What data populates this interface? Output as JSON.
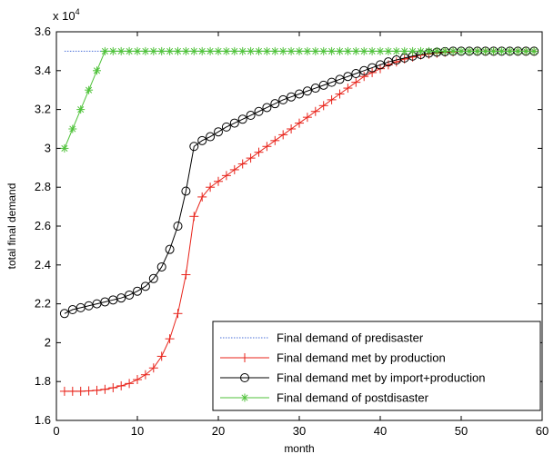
{
  "chart_data": {
    "type": "line",
    "title": "",
    "xlabel": "month",
    "ylabel": "total final demand",
    "exponent_label": {
      "base": "x 10",
      "exp": "4"
    },
    "xlim": [
      0,
      60
    ],
    "ylim": [
      1.6,
      3.6
    ],
    "x_ticks": [
      0,
      10,
      20,
      30,
      40,
      50,
      60
    ],
    "y_ticks": [
      1.6,
      1.8,
      2,
      2.2,
      2.4,
      2.6,
      2.8,
      3,
      3.2,
      3.4,
      3.6
    ],
    "x_tick_labels": [
      "0",
      "10",
      "20",
      "30",
      "40",
      "50",
      "60"
    ],
    "y_tick_labels": [
      "1.6",
      "1.8",
      "2",
      "2.2",
      "2.4",
      "2.6",
      "2.8",
      "3",
      "3.2",
      "3.4",
      "3.6"
    ],
    "grid": false,
    "legend_position": "bottom-right",
    "series": [
      {
        "name": "Final demand of predisaster",
        "color": "#4a6fd8",
        "marker": "none",
        "line_style": "dotted",
        "x": [
          1,
          59
        ],
        "y": [
          3.5,
          3.5
        ]
      },
      {
        "name": "Final demand met by production",
        "color": "#e8231a",
        "marker": "plus",
        "line_style": "solid",
        "x": [
          1,
          2,
          3,
          4,
          5,
          6,
          7,
          8,
          9,
          10,
          11,
          12,
          13,
          14,
          15,
          16,
          17,
          18,
          19,
          20,
          21,
          22,
          23,
          24,
          25,
          26,
          27,
          28,
          29,
          30,
          31,
          32,
          33,
          34,
          35,
          36,
          37,
          38,
          39,
          40,
          41,
          42,
          43,
          44,
          45,
          46,
          47,
          48,
          49,
          50,
          51,
          52,
          53,
          54,
          55,
          56,
          57,
          58,
          59
        ],
        "y": [
          1.75,
          1.75,
          1.75,
          1.752,
          1.755,
          1.76,
          1.768,
          1.778,
          1.79,
          1.81,
          1.835,
          1.87,
          1.93,
          2.02,
          2.15,
          2.35,
          2.65,
          2.75,
          2.8,
          2.83,
          2.86,
          2.89,
          2.92,
          2.95,
          2.98,
          3.01,
          3.04,
          3.07,
          3.1,
          3.13,
          3.16,
          3.19,
          3.22,
          3.25,
          3.28,
          3.31,
          3.34,
          3.37,
          3.39,
          3.41,
          3.43,
          3.445,
          3.46,
          3.47,
          3.48,
          3.485,
          3.49,
          3.495,
          3.497,
          3.5,
          3.5,
          3.5,
          3.5,
          3.5,
          3.5,
          3.5,
          3.5,
          3.5,
          3.5
        ]
      },
      {
        "name": "Final demand met by import+production",
        "color": "#000000",
        "marker": "circle",
        "line_style": "solid",
        "x": [
          1,
          2,
          3,
          4,
          5,
          6,
          7,
          8,
          9,
          10,
          11,
          12,
          13,
          14,
          15,
          16,
          17,
          18,
          19,
          20,
          21,
          22,
          23,
          24,
          25,
          26,
          27,
          28,
          29,
          30,
          31,
          32,
          33,
          34,
          35,
          36,
          37,
          38,
          39,
          40,
          41,
          42,
          43,
          44,
          45,
          46,
          47,
          48,
          49,
          50,
          51,
          52,
          53,
          54,
          55,
          56,
          57,
          58,
          59
        ],
        "y": [
          2.15,
          2.17,
          2.18,
          2.19,
          2.2,
          2.21,
          2.22,
          2.23,
          2.245,
          2.265,
          2.29,
          2.33,
          2.39,
          2.48,
          2.6,
          2.78,
          3.01,
          3.04,
          3.06,
          3.085,
          3.11,
          3.13,
          3.15,
          3.17,
          3.19,
          3.21,
          3.23,
          3.25,
          3.265,
          3.28,
          3.295,
          3.31,
          3.325,
          3.34,
          3.355,
          3.37,
          3.385,
          3.4,
          3.415,
          3.43,
          3.445,
          3.455,
          3.465,
          3.475,
          3.483,
          3.49,
          3.495,
          3.498,
          3.5,
          3.5,
          3.5,
          3.5,
          3.5,
          3.5,
          3.5,
          3.5,
          3.5,
          3.5,
          3.5
        ]
      },
      {
        "name": "Final demand of postdisaster",
        "color": "#4fc23a",
        "marker": "star",
        "line_style": "solid",
        "x": [
          1,
          2,
          3,
          4,
          5,
          6,
          7,
          8,
          9,
          10,
          11,
          12,
          13,
          14,
          15,
          16,
          17,
          18,
          19,
          20,
          21,
          22,
          23,
          24,
          25,
          26,
          27,
          28,
          29,
          30,
          31,
          32,
          33,
          34,
          35,
          36,
          37,
          38,
          39,
          40,
          41,
          42,
          43,
          44,
          45,
          46,
          47,
          48,
          49,
          50,
          51,
          52,
          53,
          54,
          55,
          56,
          57,
          58,
          59
        ],
        "y": [
          3.0,
          3.1,
          3.2,
          3.3,
          3.4,
          3.5,
          3.5,
          3.5,
          3.5,
          3.5,
          3.5,
          3.5,
          3.5,
          3.5,
          3.5,
          3.5,
          3.5,
          3.5,
          3.5,
          3.5,
          3.5,
          3.5,
          3.5,
          3.5,
          3.5,
          3.5,
          3.5,
          3.5,
          3.5,
          3.5,
          3.5,
          3.5,
          3.5,
          3.5,
          3.5,
          3.5,
          3.5,
          3.5,
          3.5,
          3.5,
          3.5,
          3.5,
          3.5,
          3.5,
          3.5,
          3.5,
          3.5,
          3.5,
          3.5,
          3.5,
          3.5,
          3.5,
          3.5,
          3.5,
          3.5,
          3.5,
          3.5,
          3.5,
          3.5
        ]
      }
    ]
  }
}
